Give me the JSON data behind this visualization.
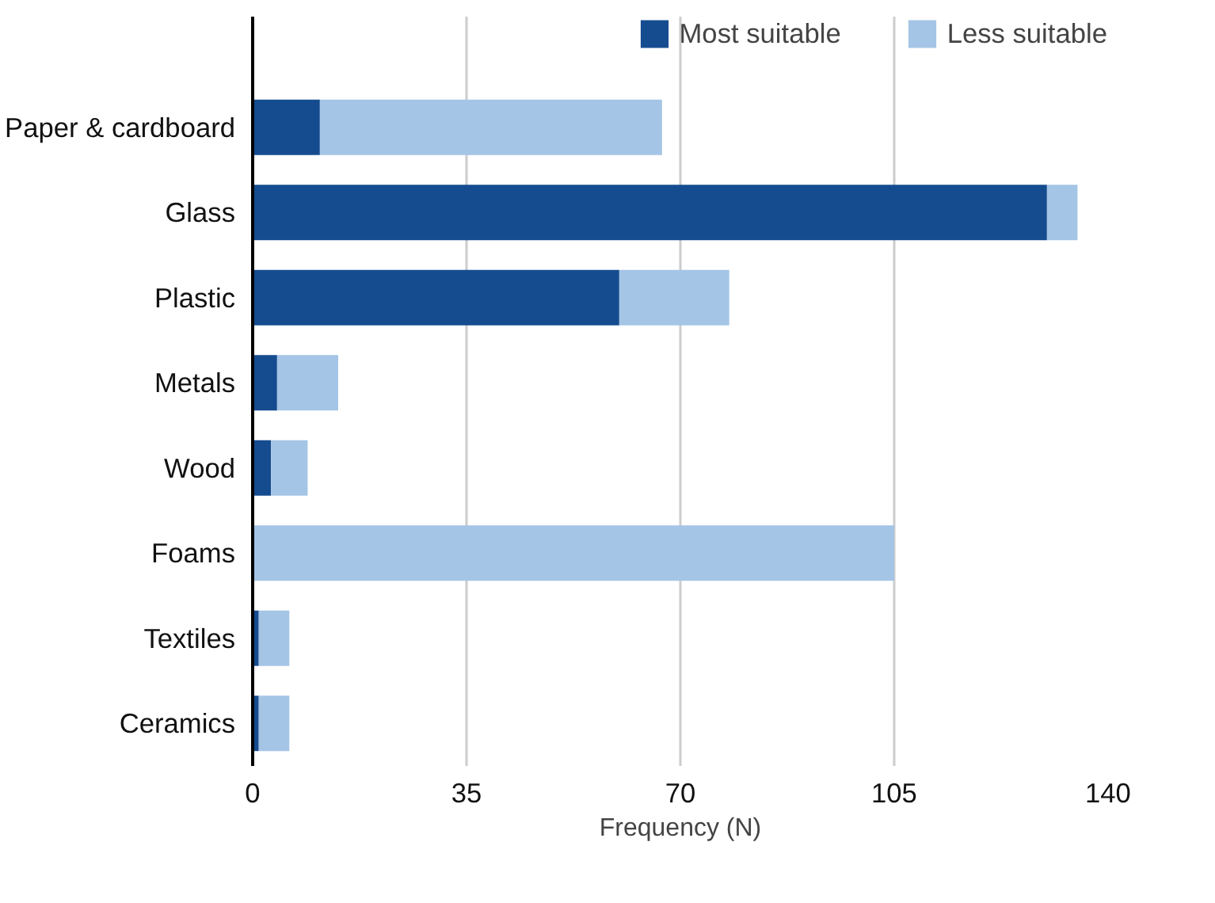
{
  "chart_data": {
    "type": "bar",
    "orientation": "horizontal",
    "stacked": true,
    "categories": [
      "Paper & cardboard",
      "Glass",
      "Plastic",
      "Metals",
      "Wood",
      "Foams",
      "Textiles",
      "Ceramics"
    ],
    "series": [
      {
        "name": "Most suitable",
        "color": "#154c8f",
        "values": [
          11,
          130,
          60,
          4,
          3,
          0,
          1,
          1
        ]
      },
      {
        "name": "Less suitable",
        "color": "#a4c5e6",
        "values": [
          56,
          5,
          18,
          10,
          6,
          105,
          5,
          5
        ]
      }
    ],
    "xlabel": "Frequency (N)",
    "xlim": [
      0,
      140
    ],
    "xticks": [
      0,
      35,
      70,
      105,
      140
    ],
    "grid": "x",
    "legend": "top right"
  }
}
